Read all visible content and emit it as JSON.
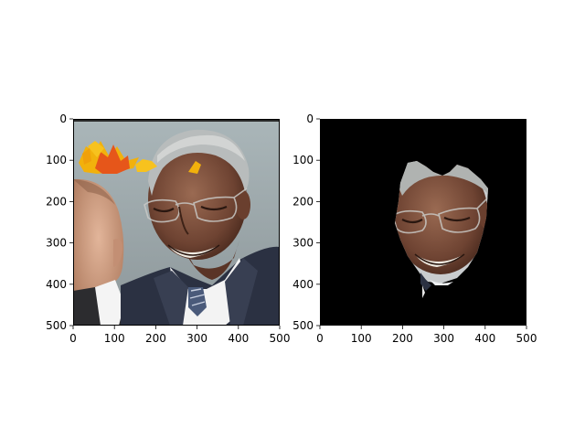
{
  "figure": {
    "background": "#ffffff"
  },
  "chart_data": [
    {
      "type": "image",
      "title": "",
      "xlabel": "",
      "ylabel": "",
      "xlim": [
        0,
        500
      ],
      "ylim": [
        500,
        0
      ],
      "xticks": [
        0,
        100,
        200,
        300,
        400,
        500
      ],
      "yticks": [
        0,
        100,
        200,
        300,
        400,
        500
      ],
      "grid": false,
      "image_content": "photo-portrait-with-autumn-leaves",
      "leaf_colors": [
        "#f2b10c",
        "#e6561a",
        "#f7c21e"
      ],
      "background_color": "#a9b4b7"
    },
    {
      "type": "image",
      "title": "",
      "xlabel": "",
      "ylabel": "",
      "xlim": [
        0,
        500
      ],
      "ylim": [
        500,
        0
      ],
      "xticks": [
        0,
        100,
        200,
        300,
        400,
        500
      ],
      "yticks": [
        0,
        100,
        200,
        300,
        400,
        500
      ],
      "grid": false,
      "image_content": "segmented-face-mask-on-black",
      "background_color": "#000000"
    }
  ]
}
